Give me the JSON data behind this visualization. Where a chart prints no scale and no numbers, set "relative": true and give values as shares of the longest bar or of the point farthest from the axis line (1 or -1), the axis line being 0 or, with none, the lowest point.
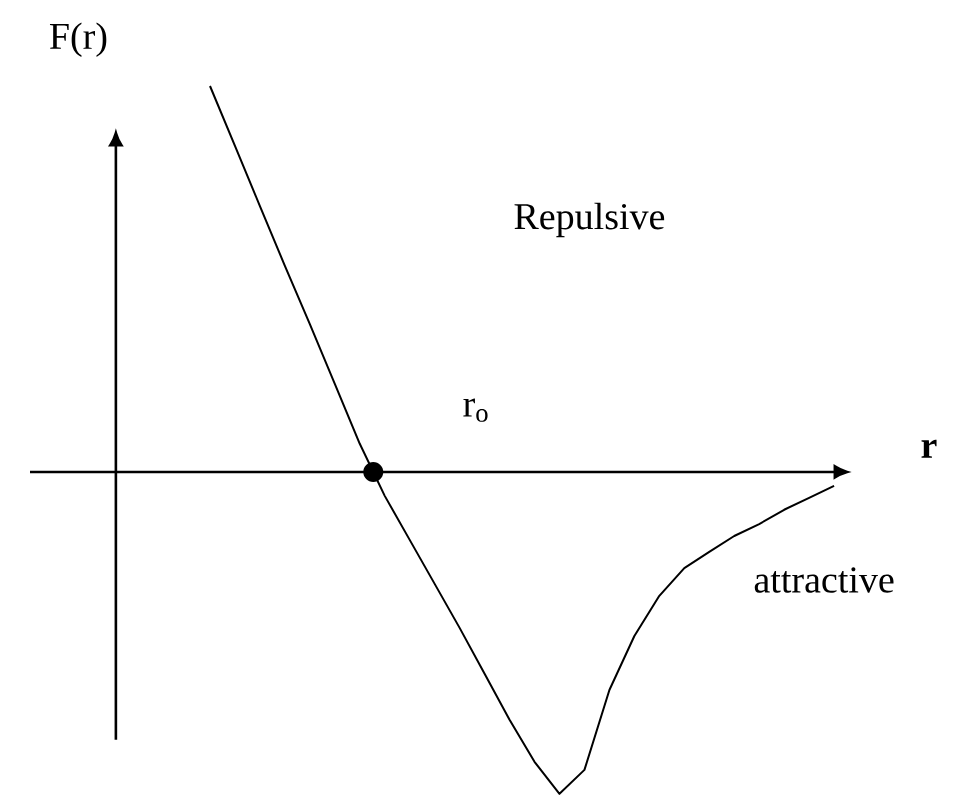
{
  "chart_data": {
    "type": "line",
    "relative": true,
    "xlabel": "r",
    "ylabel": "F(r)",
    "categories": [
      null,
      null,
      null,
      null,
      null,
      null,
      null,
      null,
      null,
      null,
      null,
      null,
      null,
      null,
      null,
      null,
      null,
      null,
      null,
      null,
      null,
      null,
      null,
      null,
      null,
      null
    ],
    "series": [
      {
        "color": "#000000",
        "values": [
          1,
          0.845,
          0.689,
          0.534,
          0.383,
          0.228,
          0.073,
          -0.062,
          -0.176,
          -0.29,
          -0.404,
          -0.523,
          -0.642,
          -0.751,
          -0.834,
          -0.772,
          -0.565,
          -0.425,
          -0.321,
          -0.249,
          -0.207,
          -0.166,
          -0.135,
          -0.098,
          -0.067,
          -0.036
        ]
      }
    ],
    "annotations": [
      "Repulsive",
      "r$_{o}$",
      "attractive"
    ]
  }
}
